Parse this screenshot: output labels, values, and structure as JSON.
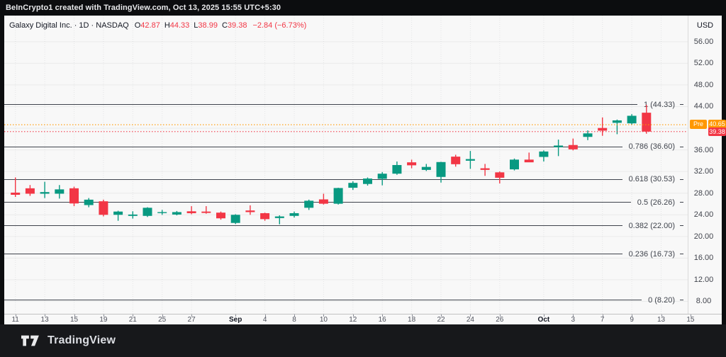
{
  "header": {
    "attribution": "BeInCrypto1 created with TradingView.com, Oct 13, 2025 15:55 UTC+5:30"
  },
  "legend": {
    "title": "Galaxy Digital Inc. · 1D · NASDAQ",
    "ohlc_items": [
      {
        "label": "O",
        "value": "42.87"
      },
      {
        "label": "H",
        "value": "44.33"
      },
      {
        "label": "L",
        "value": "38.99"
      },
      {
        "label": "C",
        "value": "39.38"
      }
    ],
    "change": "−2.84 (−6.73%)"
  },
  "price_axis": {
    "currency_label": "USD",
    "ticks": [
      {
        "label": "56.00",
        "value": 56
      },
      {
        "label": "52.00",
        "value": 52
      },
      {
        "label": "48.00",
        "value": 48
      },
      {
        "label": "44.00",
        "value": 44
      },
      {
        "label": "36.00",
        "value": 36
      },
      {
        "label": "32.00",
        "value": 32
      },
      {
        "label": "28.00",
        "value": 28
      },
      {
        "label": "24.00",
        "value": 24
      },
      {
        "label": "20.00",
        "value": 20
      },
      {
        "label": "16.00",
        "value": 16
      },
      {
        "label": "12.00",
        "value": 12
      },
      {
        "label": "8.00",
        "value": 8
      }
    ],
    "pre_badge": {
      "label": "Pre",
      "value": "40.65",
      "color": "#ff9800"
    },
    "close_badge": {
      "value": "39.38",
      "color": "#f23645"
    }
  },
  "time_axis": {
    "labels": [
      {
        "text": "11",
        "slot": 0,
        "emph": false
      },
      {
        "text": "13",
        "slot": 2,
        "emph": false
      },
      {
        "text": "15",
        "slot": 4,
        "emph": false
      },
      {
        "text": "19",
        "slot": 6,
        "emph": false
      },
      {
        "text": "21",
        "slot": 8,
        "emph": false
      },
      {
        "text": "25",
        "slot": 10,
        "emph": false
      },
      {
        "text": "27",
        "slot": 12,
        "emph": false
      },
      {
        "text": "Sep",
        "slot": 15,
        "emph": true
      },
      {
        "text": "4",
        "slot": 17,
        "emph": false
      },
      {
        "text": "8",
        "slot": 19,
        "emph": false
      },
      {
        "text": "10",
        "slot": 21,
        "emph": false
      },
      {
        "text": "12",
        "slot": 23,
        "emph": false
      },
      {
        "text": "16",
        "slot": 25,
        "emph": false
      },
      {
        "text": "18",
        "slot": 27,
        "emph": false
      },
      {
        "text": "22",
        "slot": 29,
        "emph": false
      },
      {
        "text": "24",
        "slot": 31,
        "emph": false
      },
      {
        "text": "26",
        "slot": 33,
        "emph": false
      },
      {
        "text": "Oct",
        "slot": 36,
        "emph": true
      },
      {
        "text": "3",
        "slot": 38,
        "emph": false
      },
      {
        "text": "7",
        "slot": 40,
        "emph": false
      },
      {
        "text": "9",
        "slot": 42,
        "emph": false
      },
      {
        "text": "13",
        "slot": 44,
        "emph": false
      },
      {
        "text": "15",
        "slot": 46,
        "emph": false
      }
    ]
  },
  "footer": {
    "brand": "TradingView"
  },
  "chart_data": {
    "type": "candlestick",
    "title": "Galaxy Digital Inc. · 1D · NASDAQ",
    "currency": "USD",
    "visible_price_range": [
      5.7,
      60.7
    ],
    "grid": true,
    "last_session": {
      "open": 42.87,
      "high": 44.33,
      "low": 38.99,
      "close": 39.38,
      "change": -2.84,
      "change_pct": -6.73
    },
    "pre_market_price": 40.65,
    "colors": {
      "up": "#089981",
      "down": "#f23645",
      "pre_line": "#ff9800",
      "close_line": "#f23645"
    },
    "fib_levels": [
      {
        "label": "1 (44.33)",
        "ratio": 1,
        "price": 44.33
      },
      {
        "label": "0.786 (36.60)",
        "ratio": 0.786,
        "price": 36.6
      },
      {
        "label": "0.618 (30.53)",
        "ratio": 0.618,
        "price": 30.53
      },
      {
        "label": "0.5 (26.26)",
        "ratio": 0.5,
        "price": 26.26
      },
      {
        "label": "0.382 (22.00)",
        "ratio": 0.382,
        "price": 22.0
      },
      {
        "label": "0.236 (16.73)",
        "ratio": 0.236,
        "price": 16.73
      },
      {
        "label": "0 (8.20)",
        "ratio": 0,
        "price": 8.2
      }
    ],
    "candles": [
      {
        "date": "Aug 11",
        "o": 28.1,
        "h": 30.9,
        "l": 27.3,
        "c": 27.7
      },
      {
        "date": "Aug 12",
        "o": 28.9,
        "h": 29.5,
        "l": 27.5,
        "c": 27.9
      },
      {
        "date": "Aug 13",
        "o": 27.9,
        "h": 30.1,
        "l": 27.1,
        "c": 28.2
      },
      {
        "date": "Aug 14",
        "o": 27.9,
        "h": 29.5,
        "l": 27.0,
        "c": 28.7
      },
      {
        "date": "Aug 15",
        "o": 28.9,
        "h": 29.2,
        "l": 25.6,
        "c": 26.1
      },
      {
        "date": "Aug 18",
        "o": 25.8,
        "h": 27.1,
        "l": 25.4,
        "c": 26.8
      },
      {
        "date": "Aug 19",
        "o": 26.5,
        "h": 26.8,
        "l": 23.7,
        "c": 24.0
      },
      {
        "date": "Aug 20",
        "o": 24.0,
        "h": 24.75,
        "l": 22.9,
        "c": 24.6
      },
      {
        "date": "Aug 21",
        "o": 23.8,
        "h": 24.65,
        "l": 23.3,
        "c": 24.05
      },
      {
        "date": "Aug 22",
        "o": 23.8,
        "h": 25.4,
        "l": 23.6,
        "c": 25.3
      },
      {
        "date": "Aug 25",
        "o": 24.35,
        "h": 24.9,
        "l": 24.0,
        "c": 24.5
      },
      {
        "date": "Aug 26",
        "o": 24.05,
        "h": 24.7,
        "l": 23.9,
        "c": 24.5
      },
      {
        "date": "Aug 27",
        "o": 24.65,
        "h": 25.6,
        "l": 24.1,
        "c": 24.3
      },
      {
        "date": "Aug 28",
        "o": 24.6,
        "h": 25.6,
        "l": 24.2,
        "c": 24.35
      },
      {
        "date": "Aug 29",
        "o": 24.4,
        "h": 24.6,
        "l": 23.1,
        "c": 23.35
      },
      {
        "date": "Sep 2",
        "o": 22.5,
        "h": 24.1,
        "l": 22.3,
        "c": 24.0
      },
      {
        "date": "Sep 3",
        "o": 24.8,
        "h": 25.75,
        "l": 24.0,
        "c": 24.5
      },
      {
        "date": "Sep 4",
        "o": 24.3,
        "h": 24.4,
        "l": 22.9,
        "c": 23.2
      },
      {
        "date": "Sep 5",
        "o": 23.4,
        "h": 23.9,
        "l": 22.25,
        "c": 23.7
      },
      {
        "date": "Sep 8",
        "o": 23.8,
        "h": 24.6,
        "l": 23.5,
        "c": 24.3
      },
      {
        "date": "Sep 9",
        "o": 25.3,
        "h": 26.8,
        "l": 24.9,
        "c": 26.6
      },
      {
        "date": "Sep 10",
        "o": 26.85,
        "h": 27.9,
        "l": 25.9,
        "c": 26.05
      },
      {
        "date": "Sep 11",
        "o": 26.05,
        "h": 29.0,
        "l": 25.9,
        "c": 28.95
      },
      {
        "date": "Sep 12",
        "o": 29.0,
        "h": 30.2,
        "l": 28.6,
        "c": 29.9
      },
      {
        "date": "Sep 15",
        "o": 29.7,
        "h": 30.9,
        "l": 29.4,
        "c": 30.7
      },
      {
        "date": "Sep 16",
        "o": 30.65,
        "h": 31.9,
        "l": 29.45,
        "c": 31.6
      },
      {
        "date": "Sep 17",
        "o": 31.6,
        "h": 33.85,
        "l": 31.4,
        "c": 33.2
      },
      {
        "date": "Sep 18",
        "o": 33.7,
        "h": 34.2,
        "l": 32.6,
        "c": 33.15
      },
      {
        "date": "Sep 19",
        "o": 32.3,
        "h": 33.4,
        "l": 32.1,
        "c": 32.85
      },
      {
        "date": "Sep 22",
        "o": 31.0,
        "h": 33.8,
        "l": 29.95,
        "c": 33.75
      },
      {
        "date": "Sep 23",
        "o": 34.75,
        "h": 35.1,
        "l": 32.9,
        "c": 33.35
      },
      {
        "date": "Sep 24",
        "o": 34.0,
        "h": 35.8,
        "l": 32.5,
        "c": 34.3
      },
      {
        "date": "Sep 25",
        "o": 32.6,
        "h": 33.4,
        "l": 31.2,
        "c": 32.3
      },
      {
        "date": "Sep 26",
        "o": 31.85,
        "h": 32.0,
        "l": 29.8,
        "c": 30.85
      },
      {
        "date": "Sep 29",
        "o": 32.4,
        "h": 34.4,
        "l": 32.2,
        "c": 34.2
      },
      {
        "date": "Sep 30",
        "o": 34.2,
        "h": 35.5,
        "l": 33.9,
        "c": 33.7
      },
      {
        "date": "Oct 1",
        "o": 34.7,
        "h": 35.9,
        "l": 33.85,
        "c": 35.7
      },
      {
        "date": "Oct 2",
        "o": 36.5,
        "h": 37.9,
        "l": 34.85,
        "c": 36.8
      },
      {
        "date": "Oct 3",
        "o": 36.9,
        "h": 38.1,
        "l": 35.9,
        "c": 36.1
      },
      {
        "date": "Oct 6",
        "o": 38.4,
        "h": 39.6,
        "l": 37.8,
        "c": 39.05
      },
      {
        "date": "Oct 7",
        "o": 40.05,
        "h": 42.0,
        "l": 38.6,
        "c": 39.55
      },
      {
        "date": "Oct 8",
        "o": 41.0,
        "h": 41.6,
        "l": 38.9,
        "c": 41.45
      },
      {
        "date": "Oct 9",
        "o": 40.9,
        "h": 42.6,
        "l": 40.6,
        "c": 42.3
      },
      {
        "date": "Oct 10",
        "o": 42.87,
        "h": 44.33,
        "l": 38.99,
        "c": 39.38
      }
    ]
  }
}
